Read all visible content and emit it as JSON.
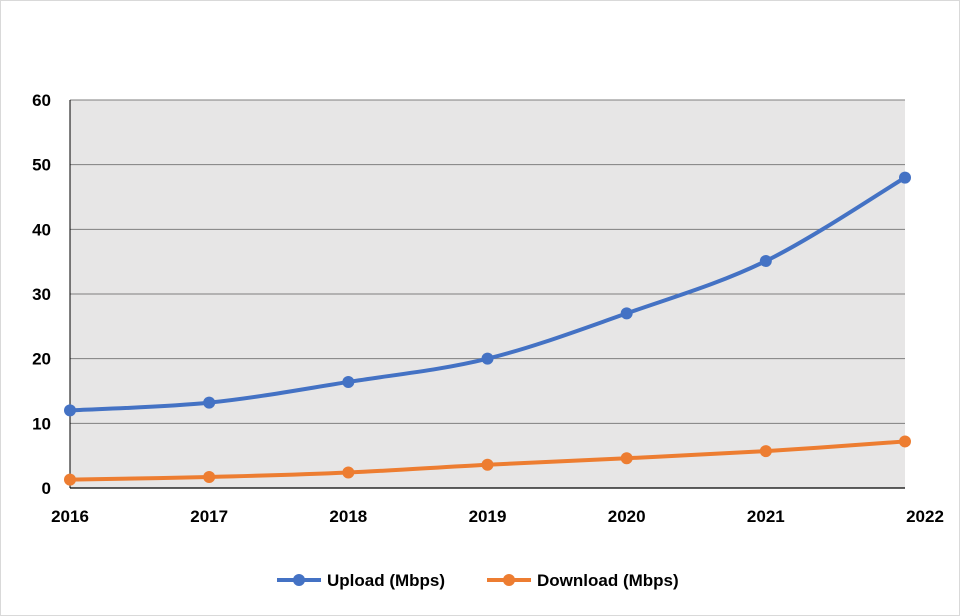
{
  "chart_data": {
    "type": "line",
    "x": [
      "2016",
      "2017",
      "2018",
      "2019",
      "2020",
      "2021",
      "2022"
    ],
    "series": [
      {
        "name": "Upload (Mbps)",
        "color": "#4472c4",
        "values": [
          12,
          13.2,
          16.4,
          20,
          27,
          35.1,
          48
        ]
      },
      {
        "name": "Download (Mbps)",
        "color": "#ed7d31",
        "values": [
          1.3,
          1.7,
          2.4,
          3.6,
          4.6,
          5.7,
          7.2
        ]
      }
    ],
    "ylim": [
      0,
      60
    ],
    "yticks": [
      "0",
      "10",
      "20",
      "30",
      "40",
      "50",
      "60"
    ],
    "grid": true,
    "legend_position": "bottom",
    "plot_background": "#e7e6e6",
    "gridline_color": "#7f7f7f"
  }
}
